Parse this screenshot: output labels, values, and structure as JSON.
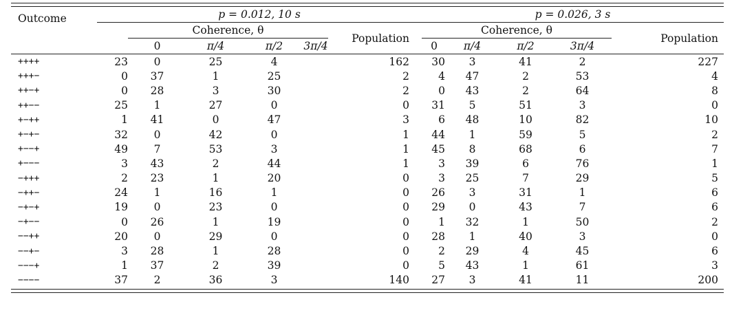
{
  "table": {
    "col_outcome": "Outcome",
    "groups": [
      {
        "title": "p = 0.012, 10 s",
        "coherence_label": "Coherence, θ",
        "population_label": "Population",
        "thetas": [
          "0",
          "π/4",
          "π/2",
          "3π/4"
        ]
      },
      {
        "title": "p = 0.026, 3 s",
        "coherence_label": "Coherence, θ",
        "population_label": "Population",
        "thetas": [
          "0",
          "π/4",
          "π/2",
          "3π/4"
        ]
      }
    ],
    "rows": [
      {
        "outcome": "++++",
        "a": [
          "23",
          "0",
          "25",
          "4"
        ],
        "ap": "162",
        "b": [
          "30",
          "3",
          "41",
          "2"
        ],
        "bp": "227"
      },
      {
        "outcome": "+++−",
        "a": [
          "0",
          "37",
          "1",
          "25"
        ],
        "ap": "2",
        "b": [
          "4",
          "47",
          "2",
          "53"
        ],
        "bp": "4"
      },
      {
        "outcome": "++−+",
        "a": [
          "0",
          "28",
          "3",
          "30"
        ],
        "ap": "2",
        "b": [
          "0",
          "43",
          "2",
          "64"
        ],
        "bp": "8"
      },
      {
        "outcome": "++−−",
        "a": [
          "25",
          "1",
          "27",
          "0"
        ],
        "ap": "0",
        "b": [
          "31",
          "5",
          "51",
          "3"
        ],
        "bp": "0"
      },
      {
        "outcome": "+−++",
        "a": [
          "1",
          "41",
          "0",
          "47"
        ],
        "ap": "3",
        "b": [
          "6",
          "48",
          "10",
          "82"
        ],
        "bp": "10"
      },
      {
        "outcome": "+−+−",
        "a": [
          "32",
          "0",
          "42",
          "0"
        ],
        "ap": "1",
        "b": [
          "44",
          "1",
          "59",
          "5"
        ],
        "bp": "2"
      },
      {
        "outcome": "+−−+",
        "a": [
          "49",
          "7",
          "53",
          "3"
        ],
        "ap": "1",
        "b": [
          "45",
          "8",
          "68",
          "6"
        ],
        "bp": "7"
      },
      {
        "outcome": "+−−−",
        "a": [
          "3",
          "43",
          "2",
          "44"
        ],
        "ap": "1",
        "b": [
          "3",
          "39",
          "6",
          "76"
        ],
        "bp": "1"
      },
      {
        "outcome": "−+++",
        "a": [
          "2",
          "23",
          "1",
          "20"
        ],
        "ap": "0",
        "b": [
          "3",
          "25",
          "7",
          "29"
        ],
        "bp": "5"
      },
      {
        "outcome": "−++−",
        "a": [
          "24",
          "1",
          "16",
          "1"
        ],
        "ap": "0",
        "b": [
          "26",
          "3",
          "31",
          "1"
        ],
        "bp": "6"
      },
      {
        "outcome": "−+−+",
        "a": [
          "19",
          "0",
          "23",
          "0"
        ],
        "ap": "0",
        "b": [
          "29",
          "0",
          "43",
          "7"
        ],
        "bp": "6"
      },
      {
        "outcome": "−+−−",
        "a": [
          "0",
          "26",
          "1",
          "19"
        ],
        "ap": "0",
        "b": [
          "1",
          "32",
          "1",
          "50"
        ],
        "bp": "2"
      },
      {
        "outcome": "−−++",
        "a": [
          "20",
          "0",
          "29",
          "0"
        ],
        "ap": "0",
        "b": [
          "28",
          "1",
          "40",
          "3"
        ],
        "bp": "0"
      },
      {
        "outcome": "−−+−",
        "a": [
          "3",
          "28",
          "1",
          "28"
        ],
        "ap": "0",
        "b": [
          "2",
          "29",
          "4",
          "45"
        ],
        "bp": "6"
      },
      {
        "outcome": "−−−+",
        "a": [
          "1",
          "37",
          "2",
          "39"
        ],
        "ap": "0",
        "b": [
          "5",
          "43",
          "1",
          "61"
        ],
        "bp": "3"
      },
      {
        "outcome": "−−−−",
        "a": [
          "37",
          "2",
          "36",
          "3"
        ],
        "ap": "140",
        "b": [
          "27",
          "3",
          "41",
          "11"
        ],
        "bp": "200"
      }
    ]
  }
}
